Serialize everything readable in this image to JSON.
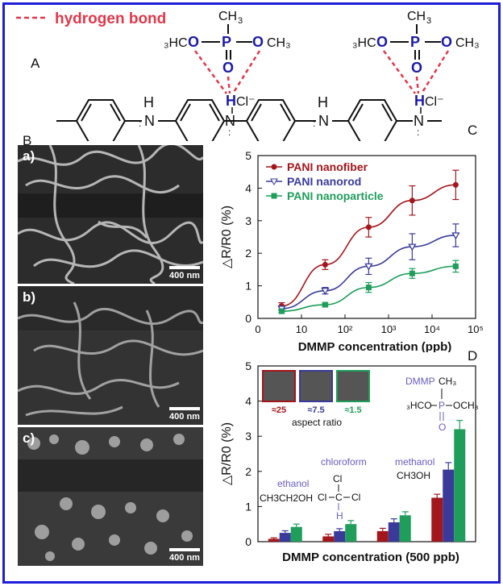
{
  "figure": {
    "hbond_legend": "hydrogen bond",
    "panel_labels": {
      "A": "A",
      "B": "B",
      "C": "C",
      "D": "D"
    },
    "sem_panels": [
      {
        "tag": "a)",
        "scale": "400 nm"
      },
      {
        "tag": "b)",
        "scale": "400 nm"
      },
      {
        "tag": "c)",
        "scale": "400 nm"
      }
    ],
    "colors": {
      "nanofiber": "#a3161b",
      "nanorod": "#3a3a9a",
      "nanoparticle": "#1e9e5a",
      "hbond": "#e0384a",
      "frame": "#1e1ed8"
    }
  },
  "chart_data": [
    {
      "type": "line",
      "ylabel": "△R/R0 (%)",
      "xlabel": "DMMP concentration (ppb)",
      "xscale": "log",
      "xlim": [
        1,
        100000
      ],
      "ylim": [
        0,
        5
      ],
      "x_ticks": [
        "0",
        "10",
        "10²",
        "10³",
        "10⁴",
        "10⁵"
      ],
      "y_ticks": [
        "0",
        "1",
        "2",
        "3",
        "4",
        "5"
      ],
      "legend_position": "top-left",
      "x": [
        3.5,
        35,
        350,
        3500,
        35000
      ],
      "series": [
        {
          "name": "PANI nanofiber",
          "values": [
            0.38,
            1.65,
            2.8,
            3.62,
            4.1
          ],
          "errors": [
            0.1,
            0.15,
            0.3,
            0.45,
            0.45
          ]
        },
        {
          "name": "PANI nanorod",
          "values": [
            0.3,
            0.85,
            1.6,
            2.2,
            2.55
          ],
          "errors": [
            0.05,
            0.1,
            0.25,
            0.4,
            0.35
          ]
        },
        {
          "name": "PANI nanoparticle",
          "values": [
            0.22,
            0.42,
            0.95,
            1.38,
            1.6
          ],
          "errors": [
            0.05,
            0.05,
            0.15,
            0.15,
            0.18
          ]
        }
      ]
    },
    {
      "type": "bar",
      "ylabel": "△R/R0 (%)",
      "xlabel": "DMMP concentration (500 ppb)",
      "ylim": [
        0,
        5
      ],
      "y_ticks": [
        "0",
        "1",
        "2",
        "3",
        "4",
        "5"
      ],
      "categories": [
        "ethanol",
        "chloroform",
        "methanol",
        "DMMP"
      ],
      "series": [
        {
          "values": [
            0.08,
            0.15,
            0.3,
            1.25
          ],
          "errors": [
            0.03,
            0.06,
            0.08,
            0.1
          ]
        },
        {
          "values": [
            0.25,
            0.3,
            0.55,
            2.05
          ],
          "errors": [
            0.06,
            0.07,
            0.1,
            0.2
          ]
        },
        {
          "values": [
            0.42,
            0.5,
            0.75,
            3.2
          ],
          "errors": [
            0.08,
            0.1,
            0.1,
            0.25
          ]
        }
      ],
      "inset": {
        "aspect_label": "aspect ratio",
        "ratios": [
          "≈25",
          "≈7.5",
          "≈1.5"
        ]
      },
      "molecule_labels": {
        "ethanol": {
          "name": "ethanol",
          "formula_a": "CH",
          "formula_b": "3",
          "formula_c": "CH",
          "formula_d": "2",
          "formula_e": "OH"
        },
        "chloroform": {
          "name": "chloroform"
        },
        "methanol": {
          "name": "methanol",
          "formula_a": "CH",
          "formula_b": "3",
          "formula_c": "OH"
        },
        "dmmp": {
          "name": "DMMP"
        }
      }
    }
  ]
}
